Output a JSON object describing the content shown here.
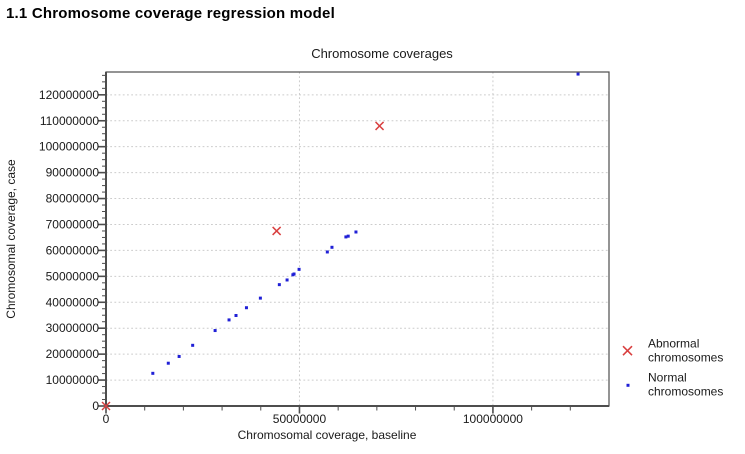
{
  "heading": "1.1 Chromosome coverage regression model",
  "chart_data": {
    "type": "scatter",
    "title": "Chromosome coverages",
    "xlabel": "Chromosomal coverage, baseline",
    "ylabel": "Chromosomal coverage, case",
    "xlim": [
      0,
      130000000
    ],
    "ylim": [
      0,
      128800000
    ],
    "x_tick_labels": [
      "0",
      "50000000",
      "100000000"
    ],
    "y_tick_labels": [
      "0",
      "10000000",
      "20000000",
      "30000000",
      "40000000",
      "50000000",
      "60000000",
      "70000000",
      "80000000",
      "90000000",
      "100000000",
      "110000000",
      "120000000"
    ],
    "x_minor_step": 10000000,
    "y_minor_step": 2500000,
    "grid": "dashed; horizontal at every y major tick, vertical at 50000000 and 100000000",
    "legend_position": "right",
    "colors": {
      "abnormal": "#d94040",
      "normal": "#2020d6",
      "grid": "#cccccc",
      "axis": "#4d4d4d",
      "text": "#1a1a1a"
    },
    "series": [
      {
        "name": "Abnormal chromosomes",
        "marker": "x",
        "color_key": "abnormal",
        "points": [
          [
            0,
            0
          ],
          [
            44100000,
            67500000
          ],
          [
            70700000,
            108000000
          ]
        ]
      },
      {
        "name": "Normal chromosomes",
        "marker": "dot",
        "color_key": "normal",
        "points": [
          [
            12100000,
            12600000
          ],
          [
            16100000,
            16500000
          ],
          [
            18900000,
            19100000
          ],
          [
            22400000,
            23400000
          ],
          [
            28200000,
            29100000
          ],
          [
            31800000,
            33200000
          ],
          [
            33600000,
            34900000
          ],
          [
            36300000,
            37900000
          ],
          [
            39900000,
            41600000
          ],
          [
            44800000,
            46800000
          ],
          [
            46800000,
            48600000
          ],
          [
            48300000,
            50600000
          ],
          [
            48600000,
            50900000
          ],
          [
            49900000,
            52700000
          ],
          [
            57200000,
            59400000
          ],
          [
            58400000,
            61200000
          ],
          [
            62000000,
            65200000
          ],
          [
            62600000,
            65500000
          ],
          [
            64600000,
            67100000
          ],
          [
            122000000,
            128000000
          ]
        ]
      }
    ]
  }
}
